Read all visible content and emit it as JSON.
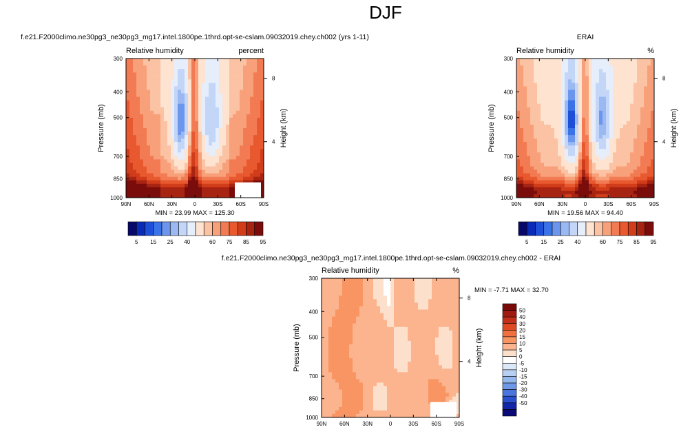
{
  "page_title": "DJF",
  "chart_data": [
    {
      "type": "heatmap",
      "id": "model",
      "title": "f.e21.F2000climo.ne30pg3_ne30pg3_mg17.intel.1800pe.1thrd.opt-se-cslam.09032019.chey.ch002 (yrs 1-11)",
      "left_label": "Relative humidity",
      "right_label": "percent",
      "ylabel": "Pressure (mb)",
      "y2label": "Height (km)",
      "x_ticks": [
        "90N",
        "60N",
        "30N",
        "0",
        "30S",
        "60S",
        "90S"
      ],
      "y_ticks": [
        "300",
        "400",
        "500",
        "700",
        "850",
        "1000"
      ],
      "y2_ticks": [
        "8",
        "4"
      ],
      "stats": "MIN =  23.99   MAX = 125.30",
      "palette": "rh",
      "colorbar_labels": [
        "5",
        "15",
        "25",
        "40",
        "60",
        "75",
        "85",
        "95"
      ]
    },
    {
      "type": "heatmap",
      "id": "obs",
      "title": "ERAI",
      "left_label": "Relative humidity",
      "right_label": "%",
      "ylabel": "Pressure (mb)",
      "y2label": "Height (km)",
      "x_ticks": [
        "90N",
        "60N",
        "30N",
        "0",
        "30S",
        "60S",
        "90S"
      ],
      "y_ticks": [
        "300",
        "400",
        "500",
        "700",
        "850",
        "1000"
      ],
      "y2_ticks": [
        "8",
        "4"
      ],
      "stats": "MIN =  19.56   MAX =  94.40",
      "palette": "rh",
      "colorbar_labels": [
        "5",
        "15",
        "25",
        "40",
        "60",
        "75",
        "85",
        "95"
      ]
    },
    {
      "type": "heatmap",
      "id": "diff",
      "title": "f.e21.F2000climo.ne30pg3_ne30pg3_mg17.intel.1800pe.1thrd.opt-se-cslam.09032019.chey.ch002 - ERAI",
      "left_label": "Relative humidity",
      "right_label": "%",
      "ylabel": "Pressure (mb)",
      "y2label": "Height (km)",
      "x_ticks": [
        "90N",
        "60N",
        "30N",
        "0",
        "30S",
        "60S",
        "90S"
      ],
      "y_ticks": [
        "300",
        "400",
        "500",
        "700",
        "850",
        "1000"
      ],
      "y2_ticks": [
        "8",
        "4"
      ],
      "stats": "MIN =  -7.71   MAX =  32.70",
      "palette": "diff",
      "colorbar_labels": [
        "50",
        "40",
        "30",
        "20",
        "15",
        "10",
        "5",
        "0",
        "-5",
        "-10",
        "-15",
        "-20",
        "-30",
        "-40",
        "-50"
      ]
    }
  ],
  "palettes": {
    "rh": [
      "#08086b",
      "#0a2bb5",
      "#1e4fd8",
      "#3a72e8",
      "#6c95ee",
      "#9ab8f2",
      "#c3d6f8",
      "#e7eefb",
      "#fde3d0",
      "#fbc2a3",
      "#f8a07a",
      "#f27b53",
      "#e8592f",
      "#d13c1a",
      "#a82412",
      "#7a0c0c"
    ],
    "diff": [
      "#7a0a0a",
      "#a01c12",
      "#c22f1a",
      "#e04a23",
      "#f0713f",
      "#f89563",
      "#fbb48e",
      "#fde0cc",
      "#ffffff",
      "#dbe8f8",
      "#b7cff3",
      "#94b7ee",
      "#6f98e6",
      "#4a75dd",
      "#2a4fcf",
      "#1226a8",
      "#0a0a78"
    ]
  }
}
